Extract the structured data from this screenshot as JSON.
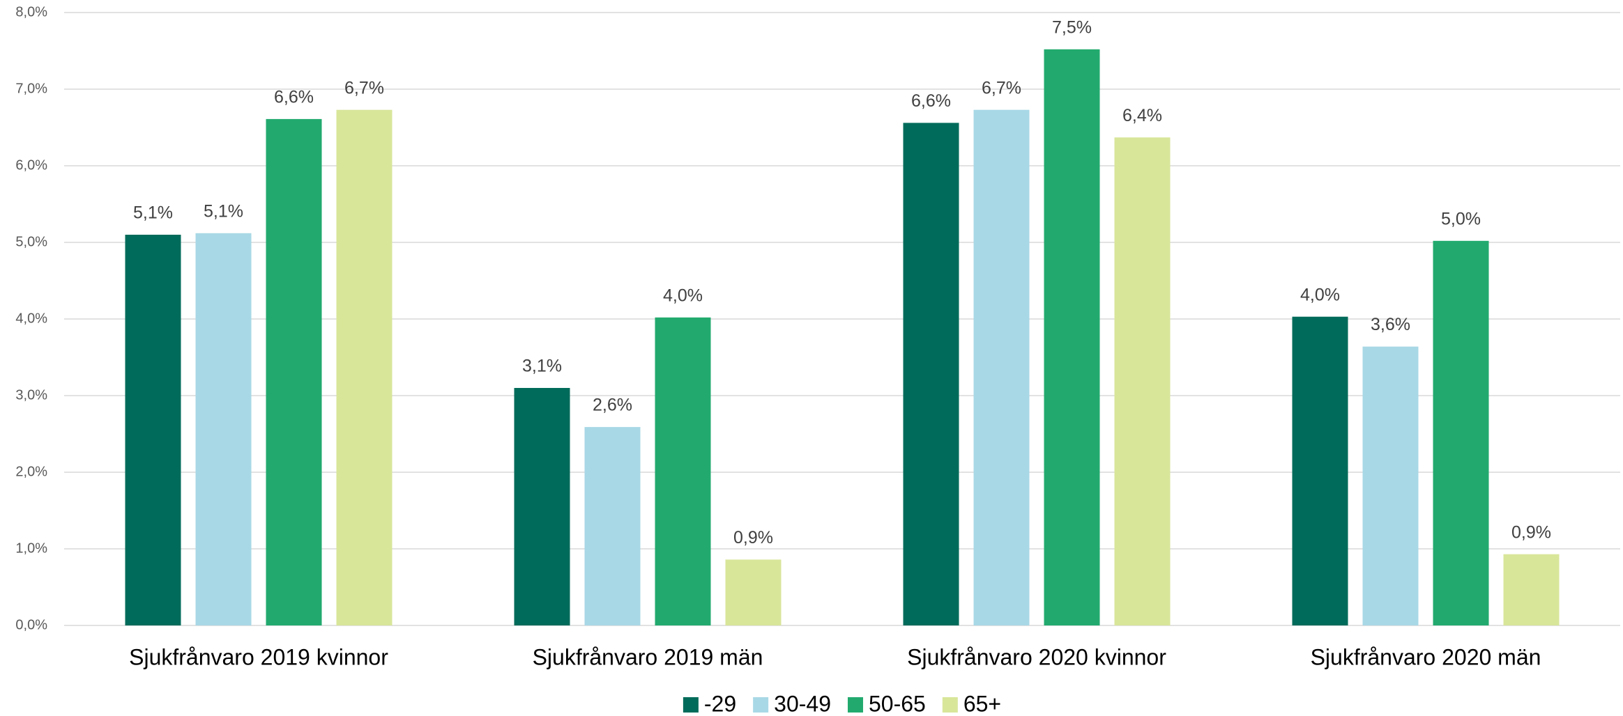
{
  "chart_data": {
    "type": "bar",
    "categories": [
      "Sjukfrånvaro 2019 kvinnor",
      "Sjukfrånvaro 2019 män",
      "Sjukfrånvaro 2020 kvinnor",
      "Sjukfrånvaro 2020 män"
    ],
    "series": [
      {
        "name": "-29",
        "color": "#006b5a",
        "values": [
          5.1,
          3.1,
          6.56,
          4.03
        ],
        "value_labels": [
          "5,1%",
          "3,1%",
          "6,6%",
          "4,0%"
        ]
      },
      {
        "name": "30-49",
        "color": "#a8d8e6",
        "values": [
          5.12,
          2.59,
          6.73,
          3.64
        ],
        "value_labels": [
          "5,1%",
          "2,6%",
          "6,7%",
          "3,6%"
        ]
      },
      {
        "name": "50-65",
        "color": "#22aa6e",
        "values": [
          6.61,
          4.02,
          7.52,
          5.02
        ],
        "value_labels": [
          "6,6%",
          "4,0%",
          "7,5%",
          "5,0%"
        ]
      },
      {
        "name": "65+",
        "color": "#d8e69a",
        "values": [
          6.73,
          0.86,
          6.37,
          0.93
        ],
        "value_labels": [
          "6,7%",
          "0,9%",
          "6,4%",
          "0,9%"
        ]
      }
    ],
    "ylim": [
      0,
      8
    ],
    "yticks": [
      {
        "value": 0,
        "label": "0,0%"
      },
      {
        "value": 1,
        "label": "1,0%"
      },
      {
        "value": 2,
        "label": "2,0%"
      },
      {
        "value": 3,
        "label": "3,0%"
      },
      {
        "value": 4,
        "label": "4,0%"
      },
      {
        "value": 5,
        "label": "5,0%"
      },
      {
        "value": 6,
        "label": "6,0%"
      },
      {
        "value": 7,
        "label": "7,0%"
      },
      {
        "value": 8,
        "label": "8,0%"
      }
    ],
    "grid": true,
    "legend": "bottom"
  }
}
